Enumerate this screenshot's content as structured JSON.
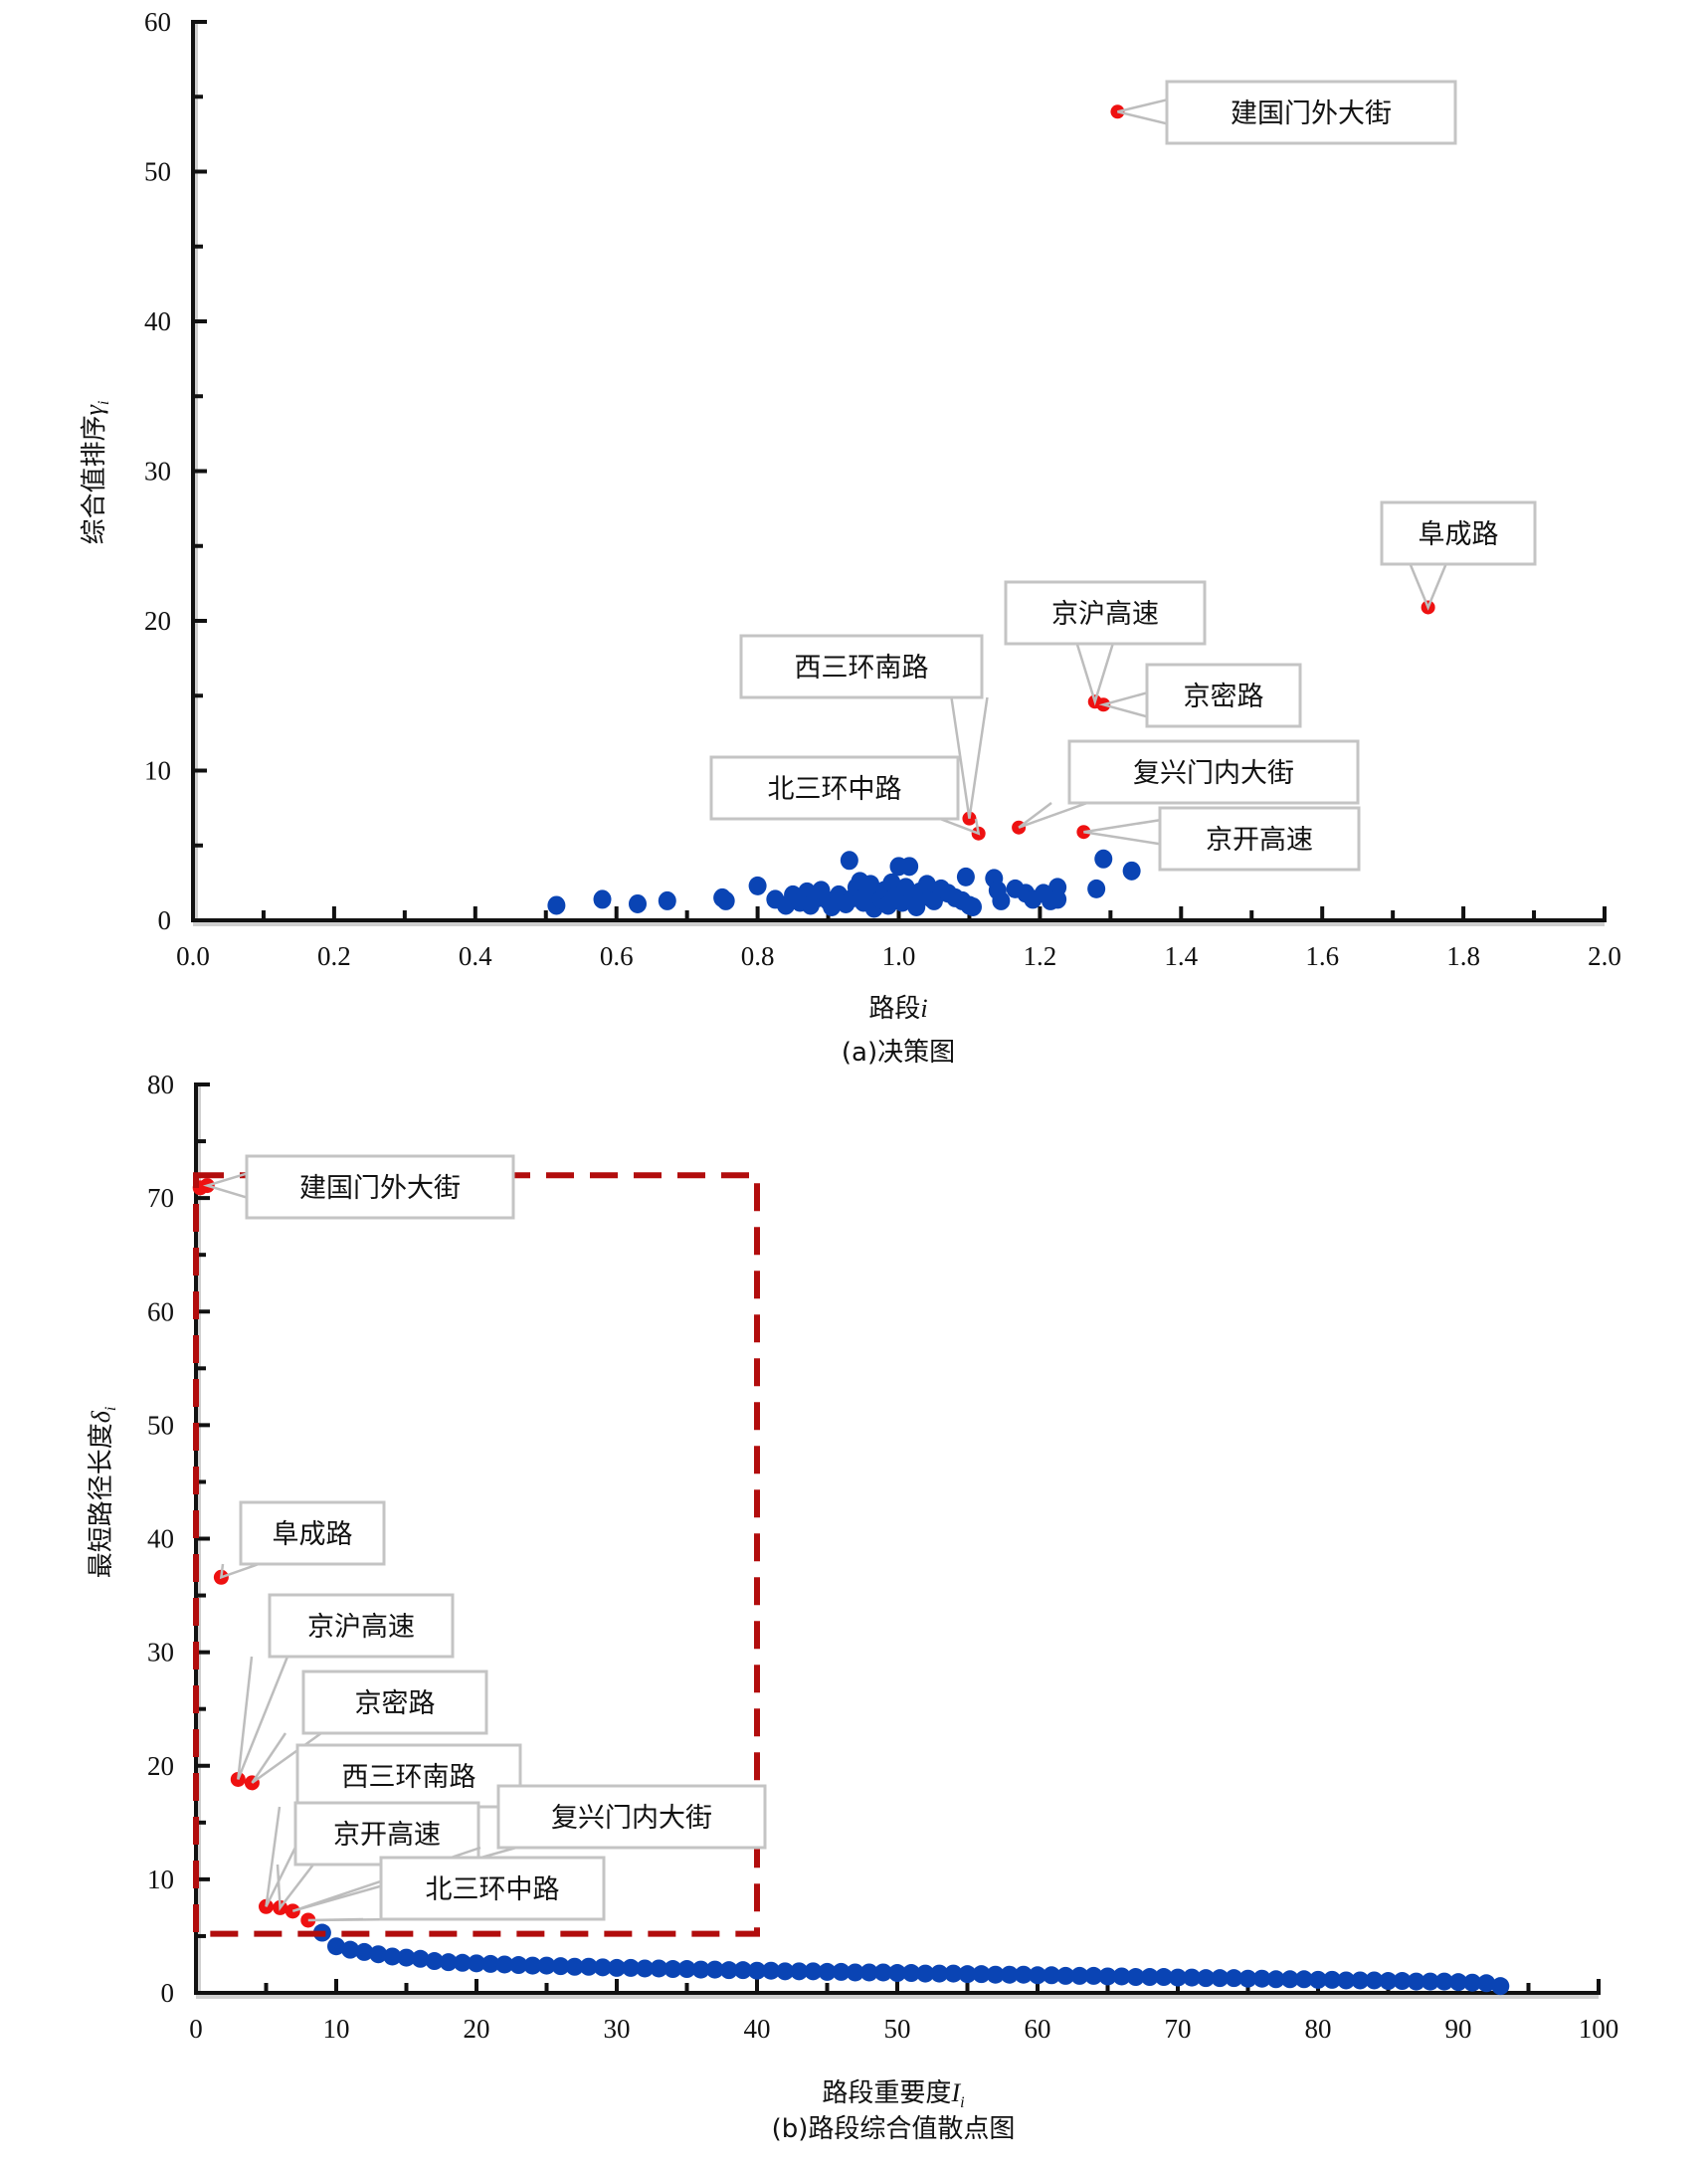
{
  "colors": {
    "normal_point": "#0a44b4",
    "highlight_point": "#ee1111",
    "selection_box": "#b20d0d",
    "callout_border": "#c4c4c4"
  },
  "chart_data": [
    {
      "id": "a",
      "type": "scatter",
      "caption": "(a)决策图",
      "xlabel": "路段",
      "xlabel_var": "i",
      "ylabel": "综合值排序",
      "ylabel_var": "γ",
      "ylabel_sub": "i",
      "xlim": [
        0.0,
        2.0
      ],
      "ylim": [
        0,
        60
      ],
      "x_ticks": [
        "0.0",
        "0.2",
        "0.4",
        "0.6",
        "0.8",
        "1.0",
        "1.2",
        "1.4",
        "1.6",
        "1.8",
        "2.0"
      ],
      "y_ticks": [
        "0",
        "10",
        "20",
        "30",
        "40",
        "50",
        "60"
      ],
      "grid": false,
      "highlighted": [
        {
          "label": "建国门外大街",
          "x": 1.31,
          "y": 54.0
        },
        {
          "label": "阜成路",
          "x": 1.75,
          "y": 20.9
        },
        {
          "label": "京沪高速",
          "x": 1.278,
          "y": 14.6
        },
        {
          "label": "京密路",
          "x": 1.29,
          "y": 14.4
        },
        {
          "label": "西三环南路",
          "x": 1.1,
          "y": 6.8
        },
        {
          "label": "北三环中路",
          "x": 1.113,
          "y": 5.8
        },
        {
          "label": "复兴门内大街",
          "x": 1.17,
          "y": 6.2
        },
        {
          "label": "京开高速",
          "x": 1.262,
          "y": 5.9
        }
      ],
      "points": [
        [
          0.515,
          1.0
        ],
        [
          0.58,
          1.4
        ],
        [
          0.63,
          1.1
        ],
        [
          0.672,
          1.3
        ],
        [
          0.75,
          1.5
        ],
        [
          0.755,
          1.3
        ],
        [
          0.8,
          2.3
        ],
        [
          0.825,
          1.4
        ],
        [
          0.84,
          1.0
        ],
        [
          0.85,
          1.7
        ],
        [
          0.86,
          1.2
        ],
        [
          0.87,
          1.9
        ],
        [
          0.875,
          1.0
        ],
        [
          0.885,
          1.5
        ],
        [
          0.89,
          2.0
        ],
        [
          0.9,
          1.3
        ],
        [
          0.905,
          0.9
        ],
        [
          0.915,
          1.7
        ],
        [
          0.925,
          1.1
        ],
        [
          0.93,
          4.0
        ],
        [
          0.935,
          1.5
        ],
        [
          0.94,
          2.2
        ],
        [
          0.945,
          2.6
        ],
        [
          0.95,
          1.2
        ],
        [
          0.955,
          1.9
        ],
        [
          0.96,
          2.4
        ],
        [
          0.965,
          0.8
        ],
        [
          0.975,
          1.4
        ],
        [
          0.98,
          2.0
        ],
        [
          0.985,
          1.0
        ],
        [
          0.99,
          2.5
        ],
        [
          0.995,
          1.6
        ],
        [
          1.0,
          3.6
        ],
        [
          1.005,
          1.2
        ],
        [
          1.01,
          2.2
        ],
        [
          1.015,
          3.6
        ],
        [
          1.02,
          1.5
        ],
        [
          1.025,
          0.9
        ],
        [
          1.03,
          1.9
        ],
        [
          1.04,
          2.4
        ],
        [
          1.045,
          1.5
        ],
        [
          1.05,
          1.3
        ],
        [
          1.06,
          2.1
        ],
        [
          1.07,
          1.8
        ],
        [
          1.08,
          1.5
        ],
        [
          1.09,
          1.3
        ],
        [
          1.1,
          1.0
        ],
        [
          1.095,
          2.9
        ],
        [
          1.105,
          0.9
        ],
        [
          1.135,
          2.8
        ],
        [
          1.14,
          2.0
        ],
        [
          1.145,
          1.3
        ],
        [
          1.165,
          2.1
        ],
        [
          1.18,
          1.8
        ],
        [
          1.19,
          1.4
        ],
        [
          1.205,
          1.8
        ],
        [
          1.215,
          1.3
        ],
        [
          1.225,
          2.2
        ],
        [
          1.225,
          1.4
        ],
        [
          1.28,
          2.1
        ],
        [
          1.29,
          4.1
        ],
        [
          1.33,
          3.3
        ]
      ]
    },
    {
      "id": "b",
      "type": "scatter",
      "caption": "(b)路段综合值散点图",
      "xlabel": "路段重要度",
      "xlabel_var": "I",
      "xlabel_sub": "i",
      "ylabel": "最短路径长度",
      "ylabel_var": "δ",
      "ylabel_sub": "i",
      "xlim": [
        0,
        100
      ],
      "ylim": [
        0,
        80
      ],
      "x_ticks": [
        "0",
        "10",
        "20",
        "30",
        "40",
        "50",
        "60",
        "70",
        "80",
        "90",
        "100"
      ],
      "y_ticks": [
        "0",
        "10",
        "20",
        "30",
        "40",
        "50",
        "60",
        "70",
        "80"
      ],
      "grid": false,
      "selection_box": {
        "x": [
          0,
          40
        ],
        "y": [
          5.2,
          72
        ]
      },
      "highlighted": [
        {
          "label": "建国门外大街",
          "x": 0.8,
          "y": 71.1
        },
        {
          "label": "",
          "x": 0.3,
          "y": 70.9
        },
        {
          "label": "阜成路",
          "x": 1.8,
          "y": 36.6
        },
        {
          "label": "京沪高速",
          "x": 3.0,
          "y": 18.8
        },
        {
          "label": "京密路",
          "x": 4.0,
          "y": 18.5
        },
        {
          "label": "西三环南路",
          "x": 5.0,
          "y": 7.6
        },
        {
          "label": "京开高速",
          "x": 6.0,
          "y": 7.5
        },
        {
          "label": "复兴门内大街",
          "x": 6.9,
          "y": 7.2
        },
        {
          "label": "北三环中路",
          "x": 8.0,
          "y": 6.4
        }
      ],
      "curve": {
        "x_start": 9,
        "x_end": 93,
        "y_values": [
          5.3,
          4.1,
          3.8,
          3.6,
          3.4,
          3.2,
          3.1,
          3.0,
          2.8,
          2.7,
          2.65,
          2.6,
          2.55,
          2.5,
          2.45,
          2.4,
          2.4,
          2.35,
          2.3,
          2.3,
          2.25,
          2.2,
          2.2,
          2.15,
          2.15,
          2.1,
          2.1,
          2.05,
          2.05,
          2.0,
          2.0,
          1.95,
          1.95,
          1.9,
          1.9,
          1.9,
          1.85,
          1.85,
          1.8,
          1.8,
          1.8,
          1.75,
          1.75,
          1.7,
          1.7,
          1.7,
          1.65,
          1.65,
          1.6,
          1.6,
          1.6,
          1.55,
          1.55,
          1.5,
          1.5,
          1.5,
          1.45,
          1.45,
          1.4,
          1.4,
          1.4,
          1.35,
          1.35,
          1.3,
          1.3,
          1.3,
          1.25,
          1.25,
          1.2,
          1.2,
          1.2,
          1.15,
          1.15,
          1.1,
          1.1,
          1.1,
          1.05,
          1.05,
          1.0,
          1.0,
          1.0,
          0.95,
          0.9,
          0.85,
          0.6
        ]
      }
    }
  ]
}
